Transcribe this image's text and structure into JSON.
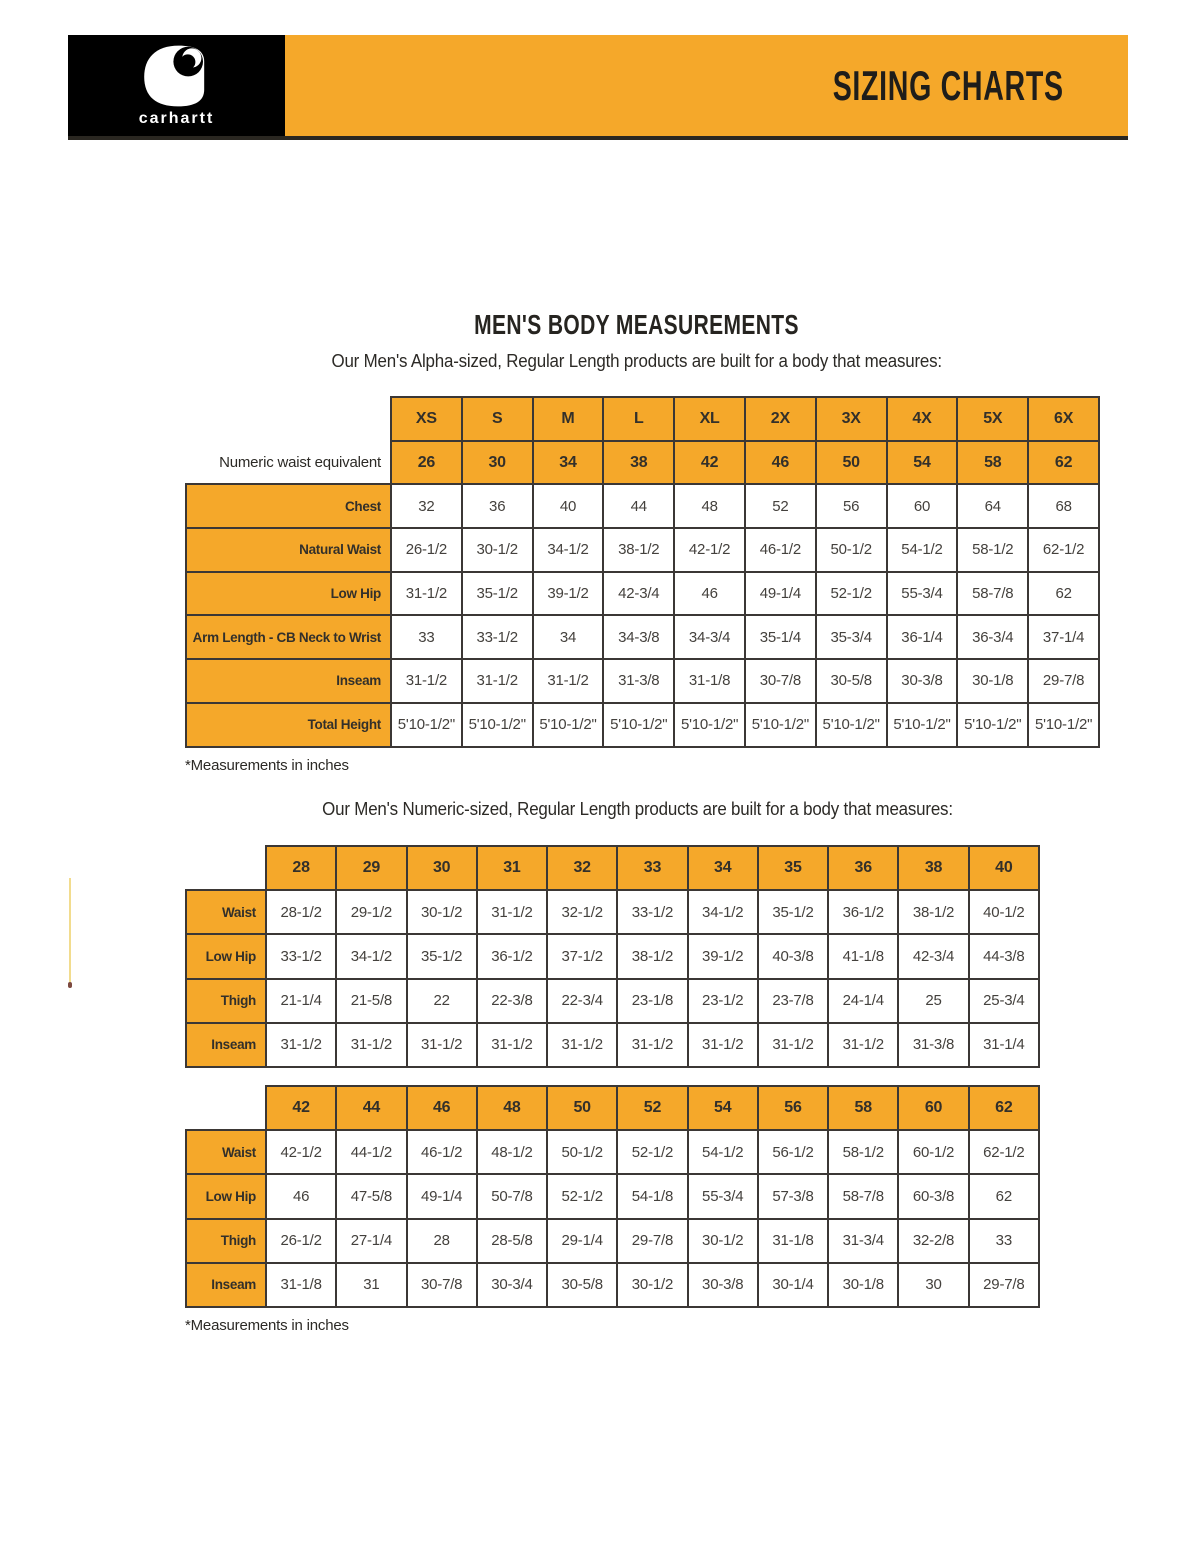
{
  "colors": {
    "gold": "#F5A82A",
    "border": "#3B3735",
    "header_underline": "#2A2721"
  },
  "header": {
    "logo_text": "carhartt",
    "banner_title": "SIZING CHARTS"
  },
  "section": {
    "title": "MEN'S BODY MEASUREMENTS",
    "alpha_subtitle": "Our Men's Alpha-sized, Regular Length products are built for a body that measures:",
    "numeric_subtitle": "Our Men's Numeric-sized, Regular Length products are built for a body that measures:",
    "alpha_footnote": "*Measurements in inches",
    "numeric_footnote": "*Measurements in inches"
  },
  "alpha_table": {
    "sizes": [
      "XS",
      "S",
      "M",
      "L",
      "XL",
      "2X",
      "3X",
      "4X",
      "5X",
      "6X"
    ],
    "waist_equiv_label": "Numeric waist equivalent",
    "waist_equiv": [
      "26",
      "30",
      "34",
      "38",
      "42",
      "46",
      "50",
      "54",
      "58",
      "62"
    ],
    "rows": [
      {
        "label": "Chest",
        "values": [
          "32",
          "36",
          "40",
          "44",
          "48",
          "52",
          "56",
          "60",
          "64",
          "68"
        ]
      },
      {
        "label": "Natural Waist",
        "values": [
          "26-1/2",
          "30-1/2",
          "34-1/2",
          "38-1/2",
          "42-1/2",
          "46-1/2",
          "50-1/2",
          "54-1/2",
          "58-1/2",
          "62-1/2"
        ]
      },
      {
        "label": "Low Hip",
        "values": [
          "31-1/2",
          "35-1/2",
          "39-1/2",
          "42-3/4",
          "46",
          "49-1/4",
          "52-1/2",
          "55-3/4",
          "58-7/8",
          "62"
        ]
      },
      {
        "label": "Arm Length - CB Neck to Wrist",
        "values": [
          "33",
          "33-1/2",
          "34",
          "34-3/8",
          "34-3/4",
          "35-1/4",
          "35-3/4",
          "36-1/4",
          "36-3/4",
          "37-1/4"
        ]
      },
      {
        "label": "Inseam",
        "values": [
          "31-1/2",
          "31-1/2",
          "31-1/2",
          "31-3/8",
          "31-1/8",
          "30-7/8",
          "30-5/8",
          "30-3/8",
          "30-1/8",
          "29-7/8"
        ]
      },
      {
        "label": "Total Height",
        "values": [
          "5'10-1/2\"",
          "5'10-1/2\"",
          "5'10-1/2\"",
          "5'10-1/2\"",
          "5'10-1/2\"",
          "5'10-1/2\"",
          "5'10-1/2\"",
          "5'10-1/2\"",
          "5'10-1/2\"",
          "5'10-1/2\""
        ]
      }
    ]
  },
  "numeric_table_1": {
    "sizes": [
      "28",
      "29",
      "30",
      "31",
      "32",
      "33",
      "34",
      "35",
      "36",
      "38",
      "40"
    ],
    "rows": [
      {
        "label": "Waist",
        "values": [
          "28-1/2",
          "29-1/2",
          "30-1/2",
          "31-1/2",
          "32-1/2",
          "33-1/2",
          "34-1/2",
          "35-1/2",
          "36-1/2",
          "38-1/2",
          "40-1/2"
        ]
      },
      {
        "label": "Low Hip",
        "values": [
          "33-1/2",
          "34-1/2",
          "35-1/2",
          "36-1/2",
          "37-1/2",
          "38-1/2",
          "39-1/2",
          "40-3/8",
          "41-1/8",
          "42-3/4",
          "44-3/8"
        ]
      },
      {
        "label": "Thigh",
        "values": [
          "21-1/4",
          "21-5/8",
          "22",
          "22-3/8",
          "22-3/4",
          "23-1/8",
          "23-1/2",
          "23-7/8",
          "24-1/4",
          "25",
          "25-3/4"
        ]
      },
      {
        "label": "Inseam",
        "values": [
          "31-1/2",
          "31-1/2",
          "31-1/2",
          "31-1/2",
          "31-1/2",
          "31-1/2",
          "31-1/2",
          "31-1/2",
          "31-1/2",
          "31-3/8",
          "31-1/4"
        ]
      }
    ]
  },
  "numeric_table_2": {
    "sizes": [
      "42",
      "44",
      "46",
      "48",
      "50",
      "52",
      "54",
      "56",
      "58",
      "60",
      "62"
    ],
    "rows": [
      {
        "label": "Waist",
        "values": [
          "42-1/2",
          "44-1/2",
          "46-1/2",
          "48-1/2",
          "50-1/2",
          "52-1/2",
          "54-1/2",
          "56-1/2",
          "58-1/2",
          "60-1/2",
          "62-1/2"
        ]
      },
      {
        "label": "Low Hip",
        "values": [
          "46",
          "47-5/8",
          "49-1/4",
          "50-7/8",
          "52-1/2",
          "54-1/8",
          "55-3/4",
          "57-3/8",
          "58-7/8",
          "60-3/8",
          "62"
        ]
      },
      {
        "label": "Thigh",
        "values": [
          "26-1/2",
          "27-1/4",
          "28",
          "28-5/8",
          "29-1/4",
          "29-7/8",
          "30-1/2",
          "31-1/8",
          "31-3/4",
          "32-2/8",
          "33"
        ]
      },
      {
        "label": "Inseam",
        "values": [
          "31-1/8",
          "31",
          "30-7/8",
          "30-3/4",
          "30-5/8",
          "30-1/2",
          "30-3/8",
          "30-1/4",
          "30-1/8",
          "30",
          "29-7/8"
        ]
      }
    ]
  }
}
